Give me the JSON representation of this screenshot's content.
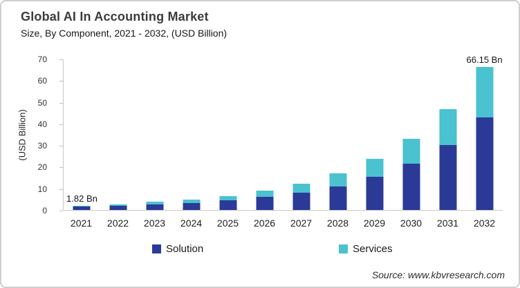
{
  "header": {
    "title": "Global AI In Accounting Market",
    "subtitle": "Size, By Component, 2021 - 2032, (USD Billion)"
  },
  "chart_data": {
    "type": "bar",
    "stacked": true,
    "title": "Global AI In Accounting Market Size, By Component, 2021 - 2032, (USD Billion)",
    "categories": [
      "2021",
      "2022",
      "2023",
      "2024",
      "2025",
      "2026",
      "2027",
      "2028",
      "2029",
      "2030",
      "2031",
      "2032"
    ],
    "series": [
      {
        "name": "Solution",
        "color": "#2B3A97",
        "values": [
          1.5,
          1.85,
          2.6,
          3.1,
          4.4,
          6.1,
          7.9,
          11.0,
          15.3,
          21.5,
          30.2,
          42.8
        ]
      },
      {
        "name": "Services",
        "color": "#4AC2D0",
        "values": [
          0.32,
          0.85,
          1.2,
          1.7,
          2.1,
          2.8,
          4.4,
          6.0,
          8.4,
          11.5,
          16.5,
          23.35
        ]
      }
    ],
    "totals": [
      1.82,
      2.7,
      3.8,
      4.8,
      6.5,
      8.9,
      12.3,
      17.0,
      23.7,
      33.0,
      46.7,
      66.15
    ],
    "annotations": [
      {
        "index": 0,
        "text": "1.82 Bn"
      },
      {
        "index": 11,
        "text": "66.15 Bn"
      }
    ],
    "xlabel": "",
    "ylabel": "(USD Billion)",
    "ylim": [
      0,
      70
    ],
    "yticks": [
      0,
      10,
      20,
      30,
      40,
      50,
      60,
      70
    ],
    "grid": false,
    "legend_position": "bottom"
  },
  "footer": {
    "source": "Source: www.kbvresearch.com"
  }
}
